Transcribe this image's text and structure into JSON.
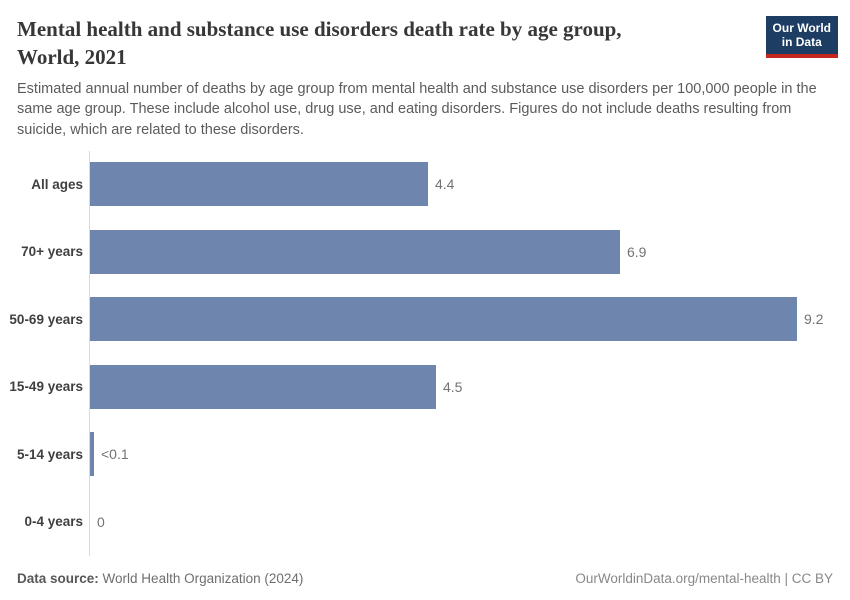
{
  "header": {
    "title": "Mental health and substance use disorders death rate by age group,\nWorld, 2021",
    "subtitle": "Estimated annual number of deaths by age group from mental health and substance use disorders per 100,000 people in the same age group. These include alcohol use, drug use, and eating disorders. Figures do not include deaths resulting from suicide, which are related to these disorders.",
    "logo": {
      "line1": "Our World",
      "line2": "in Data"
    }
  },
  "chart_data": {
    "type": "bar",
    "orientation": "horizontal",
    "title": "Mental health and substance use disorders death rate by age group, World, 2021",
    "categories": [
      "All ages",
      "70+ years",
      "50-69 years",
      "15-49 years",
      "5-14 years",
      "0-4 years"
    ],
    "values": [
      4.4,
      6.9,
      9.2,
      4.5,
      0.05,
      0
    ],
    "value_labels": [
      "4.4",
      "6.9",
      "9.2",
      "4.5",
      "<0.1",
      "0"
    ],
    "xlabel": "",
    "ylabel": "",
    "xlim": [
      0,
      9.6
    ],
    "grid": false,
    "legend": "none"
  },
  "colors": {
    "bar": "#6e86ad",
    "logo_navy": "#1d3d63",
    "logo_red": "#c5271c",
    "axis_line": "#dadada",
    "title_text": "#383636",
    "subtitle_text": "#5b5b5b",
    "category_label": "#404040",
    "value_label": "#737373"
  },
  "footer": {
    "source_label": "Data source:",
    "source_value": "World Health Organization (2024)",
    "right": "OurWorldinData.org/mental-health | CC BY"
  }
}
